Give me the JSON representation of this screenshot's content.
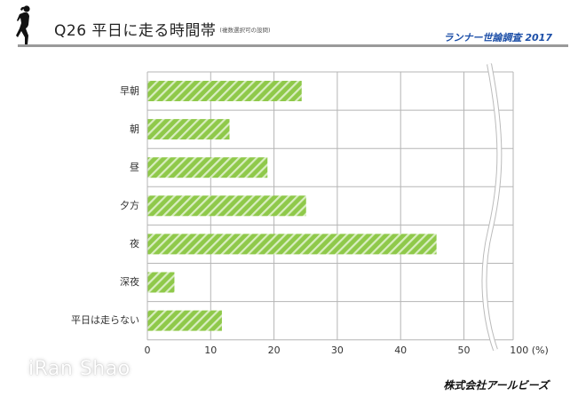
{
  "header": {
    "title": "Q26 平日に走る時間帯",
    "subtitle": "(複数選択可の設問)",
    "survey": "ランナー世論調査 2017",
    "icon": "runner-icon"
  },
  "footer": {
    "company": "株式会社アールビーズ",
    "watermark": "iRan Shao"
  },
  "colors": {
    "bar": "#8fc94a",
    "bar_stripe": "#d9eec2",
    "grid": "#b5b5b5",
    "title_blue": "#1d4fa8",
    "header_rule": "#9a9a9a"
  },
  "axis": {
    "ticks": [
      "0",
      "10",
      "20",
      "30",
      "40",
      "50"
    ],
    "max_label": "100 (%)"
  },
  "chart_data": {
    "type": "bar",
    "orientation": "horizontal",
    "title": "Q26 平日に走る時間帯 (複数選択可の設問)",
    "categories": [
      "早朝",
      "朝",
      "昼",
      "夕方",
      "夜",
      "深夜",
      "平日は走らない"
    ],
    "values": [
      24.3,
      12.9,
      18.9,
      25.0,
      45.6,
      4.2,
      11.7
    ],
    "xlabel": "%",
    "ylabel": "",
    "xlim": [
      0,
      100
    ],
    "x_ticks": [
      0,
      10,
      20,
      30,
      40,
      50,
      100
    ],
    "axis_break": "between 50 and 100",
    "grid": true,
    "legend": null,
    "bar_pattern": "diagonal-stripes"
  }
}
